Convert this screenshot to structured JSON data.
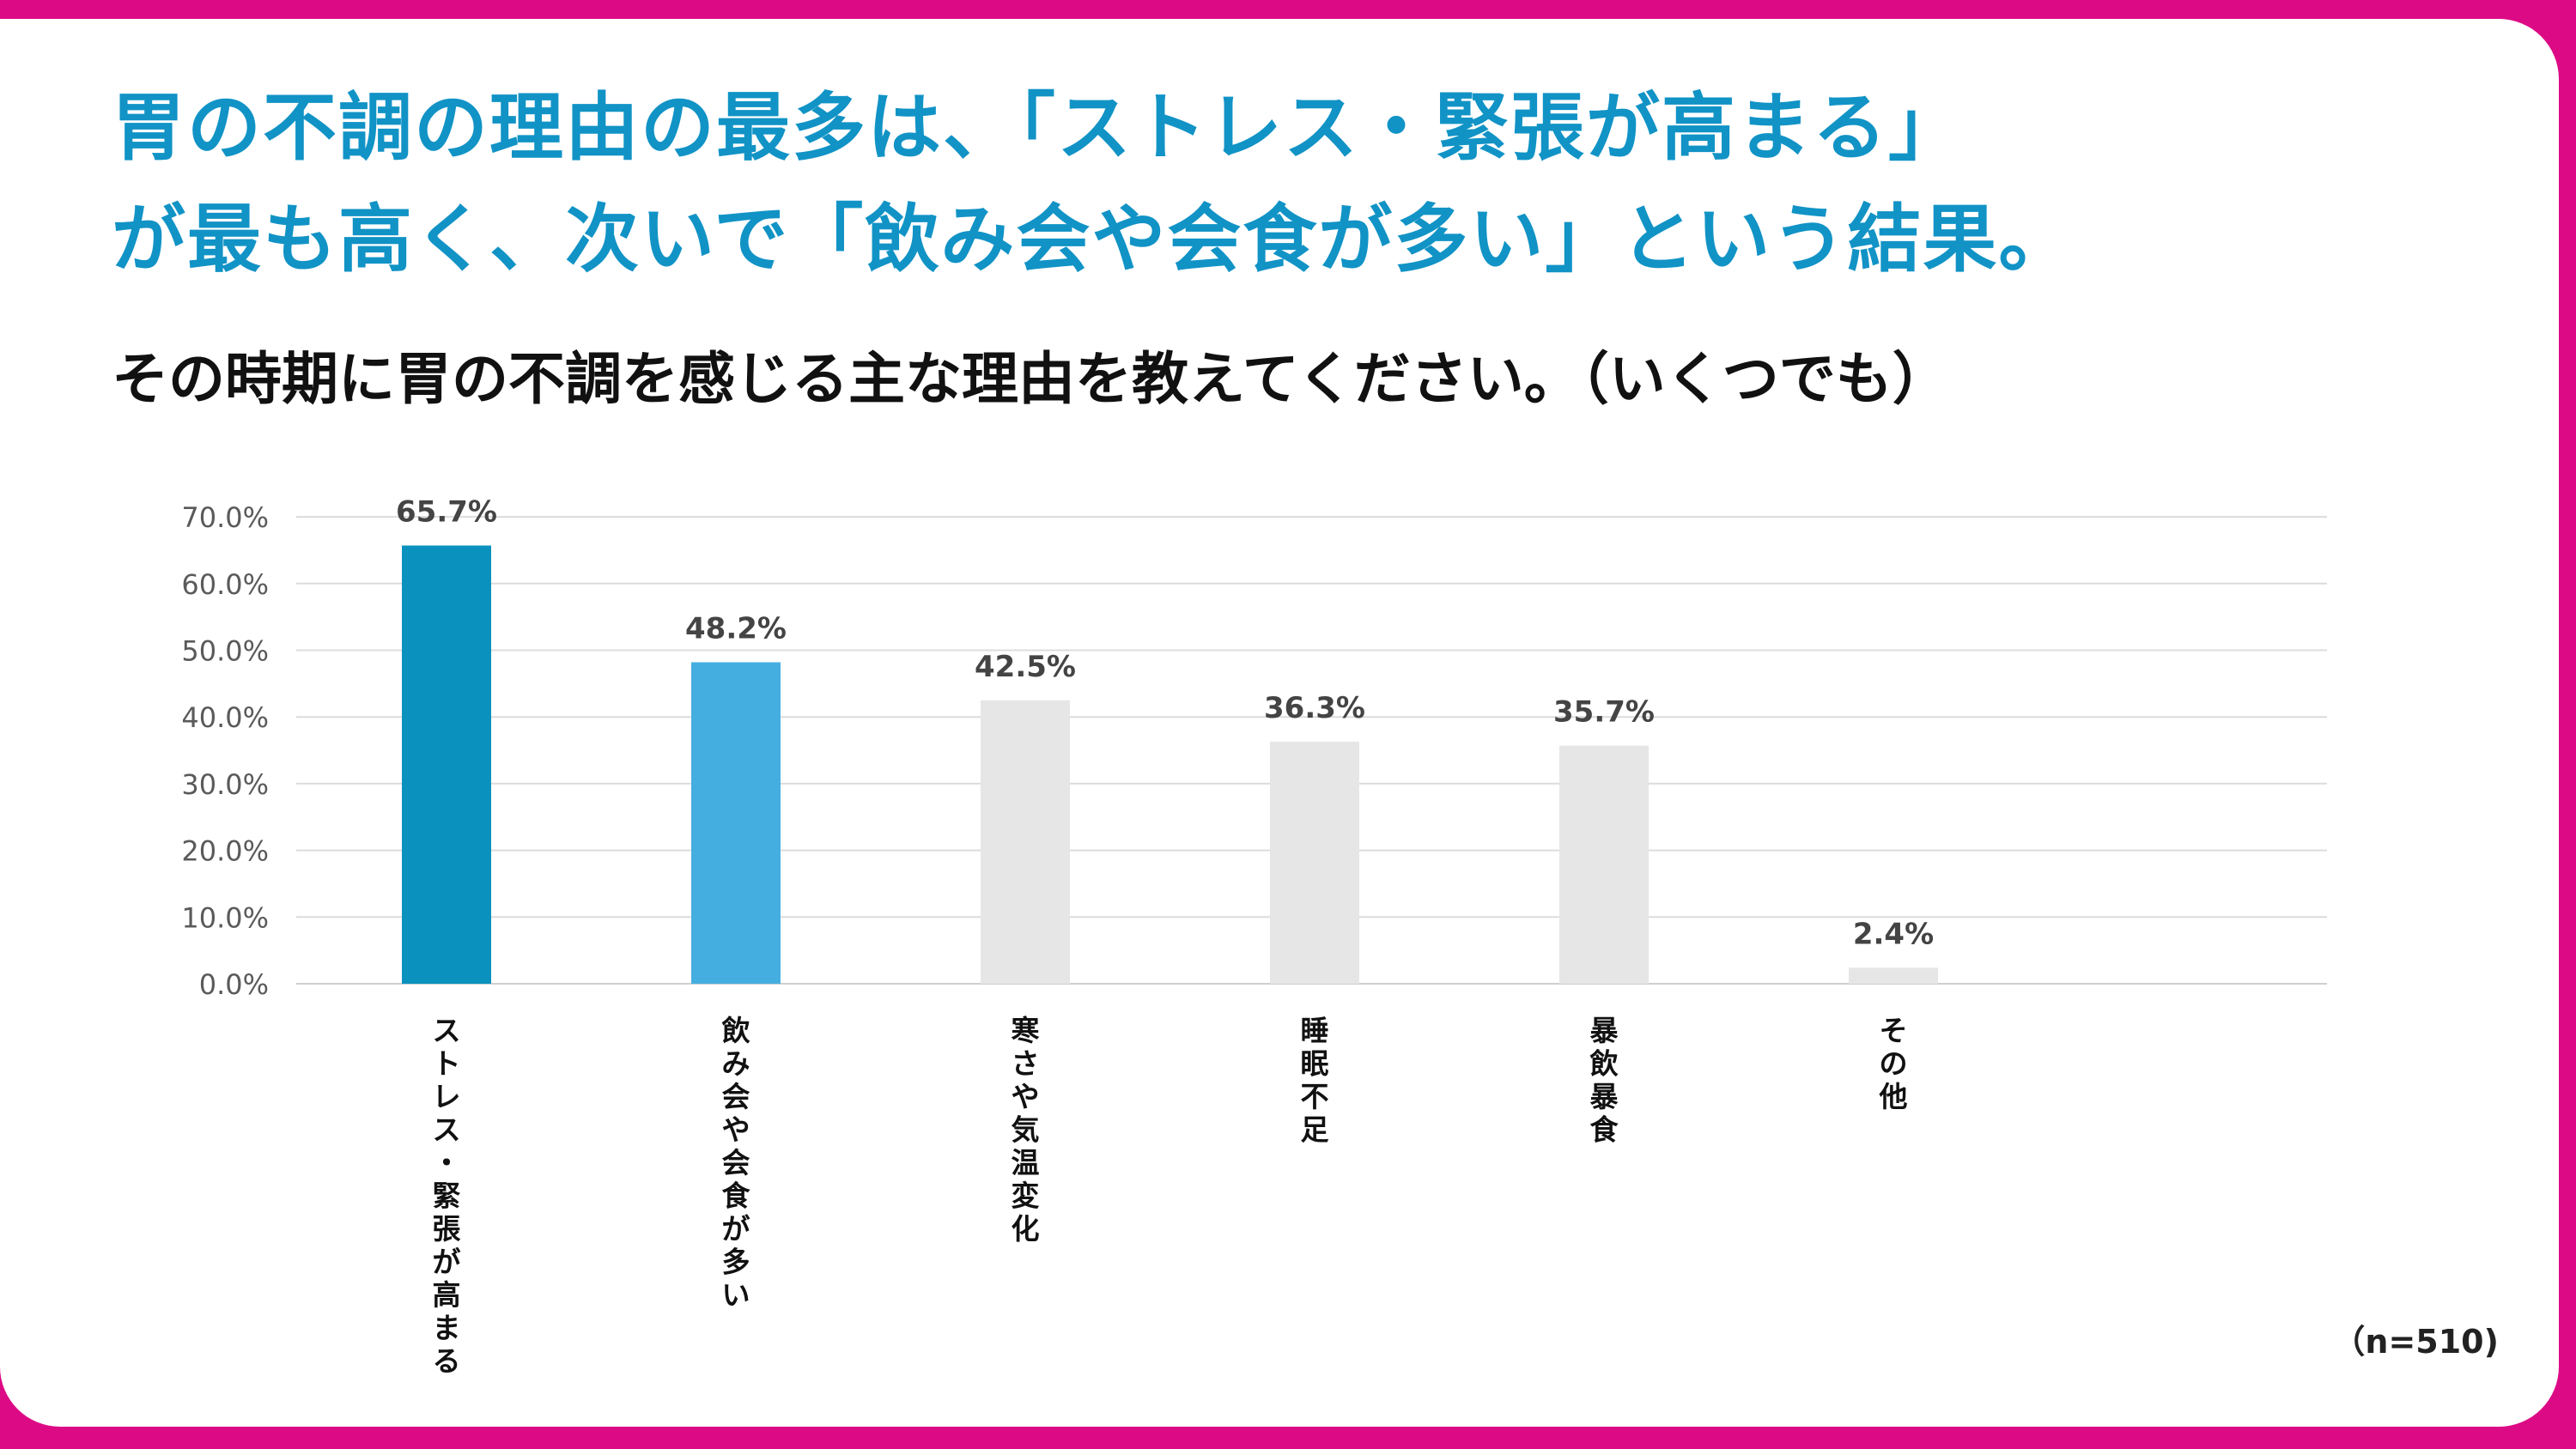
{
  "headline": {
    "line1": "胃の不調の理由の最多は、「ストレス・緊張が高まる」",
    "line2": "が最も高く、次いで「飲み会や会食が多い」という結果。"
  },
  "question": "その時期に胃の不調を感じる主な理由を教えてください。（いくつでも）",
  "sample_size": "（n=510)",
  "colors": {
    "frame": "#dd0a86",
    "headline": "#1193c6",
    "bar_primary": "#0a91bd",
    "bar_secondary": "#45aee0",
    "bar_other": "#e6e6e6"
  },
  "chart_data": {
    "type": "bar",
    "categories": [
      "ストレス・緊張が高まる",
      "飲み会や会食が多い",
      "寒さや気温変化",
      "睡眠不足",
      "暴飲暴食",
      "その他"
    ],
    "values": [
      65.7,
      48.2,
      42.5,
      36.3,
      35.7,
      2.4
    ],
    "value_labels": [
      "65.7%",
      "48.2%",
      "42.5%",
      "36.3%",
      "35.7%",
      "2.4%"
    ],
    "bar_colors": [
      "#0a91bd",
      "#45aee0",
      "#e6e6e6",
      "#e6e6e6",
      "#e6e6e6",
      "#e6e6e6"
    ],
    "yticks": [
      "0.0%",
      "10.0%",
      "20.0%",
      "30.0%",
      "40.0%",
      "50.0%",
      "60.0%",
      "70.0%"
    ],
    "ylim": [
      0,
      70
    ],
    "grid": true,
    "legend": false
  }
}
